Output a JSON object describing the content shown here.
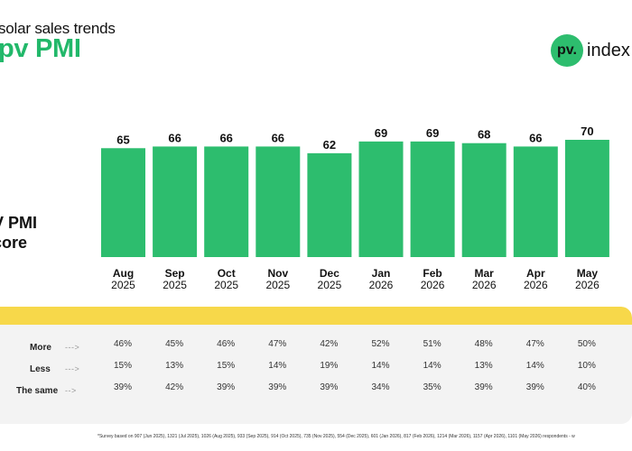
{
  "header": {
    "subtitle": "solar sales trends",
    "title": "pv PMI",
    "logo_mark": "pv.",
    "logo_text": "index"
  },
  "colors": {
    "bar": "#2dbd6e",
    "title": "#22b86a",
    "panel_accent": "#f7d84a",
    "panel_bg": "#f3f3f3"
  },
  "score_label": {
    "line1": "V PMI",
    "line2": "core"
  },
  "chart_data": {
    "type": "bar",
    "categories": [
      "Aug 2025",
      "Sep 2025",
      "Oct 2025",
      "Nov 2025",
      "Dec 2025",
      "Jan 2026",
      "Feb 2026",
      "Mar 2026",
      "Apr 2026",
      "May 2026"
    ],
    "months": [
      "Aug",
      "Sep",
      "Oct",
      "Nov",
      "Dec",
      "Jan",
      "Feb",
      "Mar",
      "Apr",
      "May"
    ],
    "years": [
      "2025",
      "2025",
      "2025",
      "2025",
      "2025",
      "2026",
      "2026",
      "2026",
      "2026",
      "2026"
    ],
    "values": [
      65,
      66,
      66,
      66,
      62,
      69,
      69,
      68,
      66,
      70
    ],
    "ylim": [
      0,
      70
    ]
  },
  "table": {
    "rows": [
      {
        "label": "More",
        "arrow": "- - - >",
        "values": [
          "46%",
          "45%",
          "46%",
          "47%",
          "42%",
          "52%",
          "51%",
          "48%",
          "47%",
          "50%"
        ]
      },
      {
        "label": "Less",
        "arrow": "- - - >",
        "values": [
          "15%",
          "13%",
          "15%",
          "14%",
          "19%",
          "14%",
          "14%",
          "13%",
          "14%",
          "10%"
        ]
      },
      {
        "label": "The same",
        "arrow": "- - >",
        "values": [
          "39%",
          "42%",
          "39%",
          "39%",
          "39%",
          "34%",
          "35%",
          "39%",
          "39%",
          "40%"
        ]
      }
    ]
  },
  "footnote": "*Survey based on 907 (Jun 2025), 1321 (Jul 2025), 1026 (Aug 2025), 933 (Sep 2025), 914 (Oct 2025), 735 (Nov 2025), 554 (Dec 2025), 601 (Jan 2026), 817 (Feb 2026), 1214 (Mar 2026), 1157 (Apr 2026), 1101 (May 2026) respondents - w"
}
